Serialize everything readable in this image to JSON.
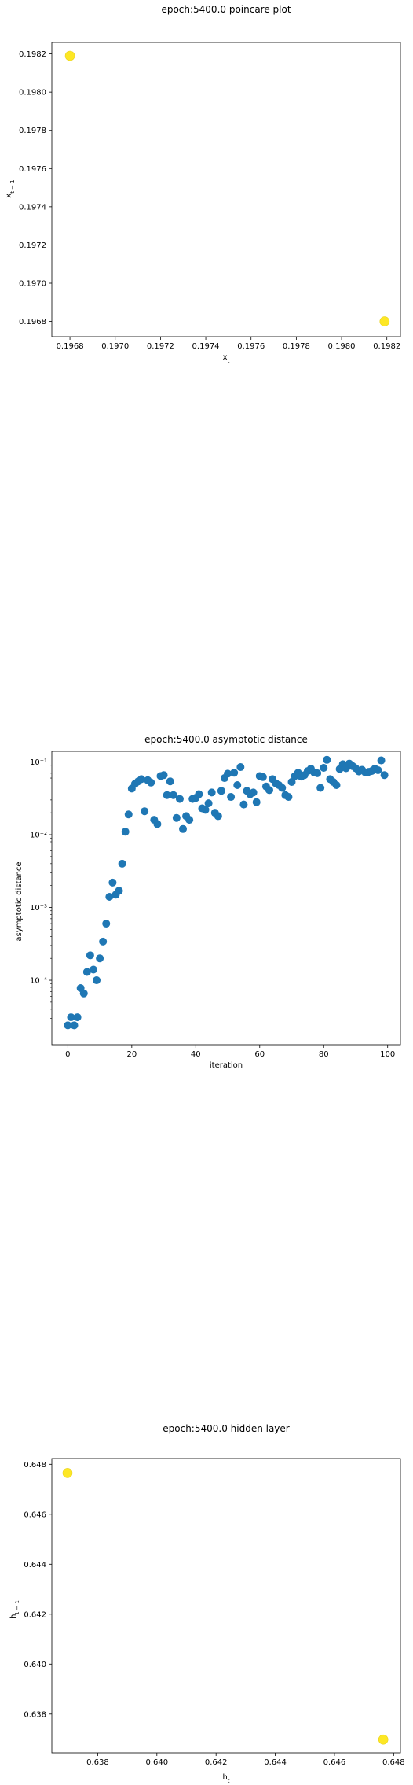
{
  "chart_data": [
    {
      "type": "scatter",
      "title": "epoch:5400.0 poincare plot",
      "xlabel": "x_t",
      "ylabel": "x_{t-1}",
      "xlim": [
        0.19672,
        0.19826
      ],
      "ylim": [
        0.19672,
        0.19826
      ],
      "xticks": [
        "0.1968",
        "0.1970",
        "0.1972",
        "0.1974",
        "0.1976",
        "0.1978",
        "0.1980",
        "0.1982"
      ],
      "yticks": [
        "0.1968",
        "0.1970",
        "0.1972",
        "0.1974",
        "0.1976",
        "0.1978",
        "0.1980",
        "0.1982"
      ],
      "marker_color": "#fde725",
      "points": [
        {
          "x": 0.1968,
          "y": 0.19819
        },
        {
          "x": 0.19819,
          "y": 0.1968
        }
      ]
    },
    {
      "type": "scatter",
      "title": "epoch:5400.0 asymptotic distance",
      "xlabel": "iteration",
      "ylabel": "asymptotic distance",
      "yscale": "log",
      "xlim": [
        -5,
        104
      ],
      "ylim": [
        1.3e-05,
        0.14
      ],
      "xticks": [
        "0",
        "20",
        "40",
        "60",
        "80",
        "100"
      ],
      "yticks": [
        "10⁻⁴",
        "10⁻³",
        "10⁻²",
        "10⁻¹"
      ],
      "marker_color": "#1f77b4",
      "x": [
        0,
        1,
        2,
        3,
        4,
        5,
        6,
        7,
        8,
        9,
        10,
        11,
        12,
        13,
        14,
        15,
        16,
        17,
        18,
        19,
        20,
        21,
        22,
        23,
        24,
        25,
        26,
        27,
        28,
        29,
        30,
        31,
        32,
        33,
        34,
        35,
        36,
        37,
        38,
        39,
        40,
        41,
        42,
        43,
        44,
        45,
        46,
        47,
        48,
        49,
        50,
        51,
        52,
        53,
        54,
        55,
        56,
        57,
        58,
        59,
        60,
        61,
        62,
        63,
        64,
        65,
        66,
        67,
        68,
        69,
        70,
        71,
        72,
        73,
        74,
        75,
        76,
        77,
        78,
        79,
        80,
        81,
        82,
        83,
        84,
        85,
        86,
        87,
        88,
        89,
        90,
        91,
        92,
        93,
        94,
        95,
        96,
        97,
        98,
        99
      ],
      "y": [
        2.4e-05,
        3.1e-05,
        2.4e-05,
        3.1e-05,
        7.8e-05,
        6.6e-05,
        0.00013,
        0.00022,
        0.00014,
        0.0001,
        0.0002,
        0.00034,
        0.0006,
        0.0014,
        0.0022,
        0.0015,
        0.0017,
        0.004,
        0.011,
        0.019,
        0.043,
        0.05,
        0.054,
        0.058,
        0.021,
        0.056,
        0.052,
        0.016,
        0.014,
        0.064,
        0.066,
        0.035,
        0.054,
        0.035,
        0.017,
        0.031,
        0.012,
        0.018,
        0.016,
        0.031,
        0.032,
        0.036,
        0.023,
        0.022,
        0.027,
        0.038,
        0.02,
        0.018,
        0.04,
        0.06,
        0.069,
        0.033,
        0.071,
        0.048,
        0.085,
        0.026,
        0.04,
        0.036,
        0.038,
        0.028,
        0.064,
        0.062,
        0.046,
        0.041,
        0.058,
        0.051,
        0.048,
        0.044,
        0.035,
        0.033,
        0.053,
        0.064,
        0.071,
        0.063,
        0.066,
        0.075,
        0.081,
        0.072,
        0.07,
        0.044,
        0.083,
        0.107,
        0.058,
        0.053,
        0.048,
        0.08,
        0.093,
        0.082,
        0.095,
        0.088,
        0.082,
        0.074,
        0.078,
        0.072,
        0.073,
        0.075,
        0.081,
        0.077,
        0.105,
        0.066
      ]
    },
    {
      "type": "scatter",
      "title": "epoch:5400.0 hidden layer",
      "xlabel": "h_t",
      "ylabel": "h_{t-1}",
      "xlim": [
        0.63645,
        0.64823
      ],
      "ylim": [
        0.63645,
        0.64823
      ],
      "xticks": [
        "0.638",
        "0.640",
        "0.642",
        "0.644",
        "0.646",
        "0.648"
      ],
      "yticks": [
        "0.638",
        "0.640",
        "0.642",
        "0.644",
        "0.646",
        "0.648"
      ],
      "marker_color": "#fde725",
      "points": [
        {
          "x": 0.63698,
          "y": 0.64765
        },
        {
          "x": 0.64765,
          "y": 0.63698
        }
      ]
    }
  ]
}
